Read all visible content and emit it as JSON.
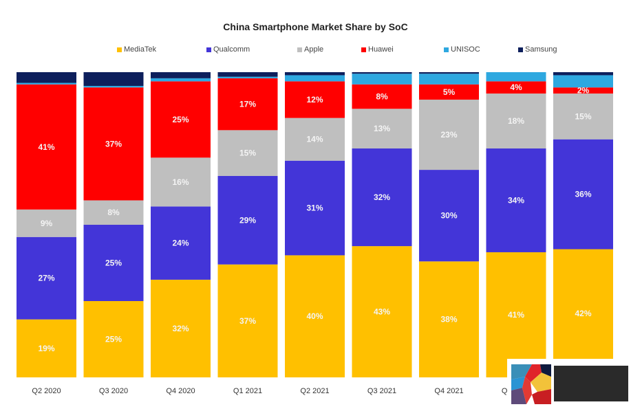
{
  "chart_data": {
    "type": "bar",
    "stacked": true,
    "normalized": true,
    "title": "China Smartphone Market Share by SoC",
    "xlabel": "",
    "ylabel": "",
    "ylim": [
      0,
      100
    ],
    "legend_position": "top",
    "grid": false,
    "categories": [
      "Q2 2020",
      "Q3 2020",
      "Q4 2020",
      "Q1 2021",
      "Q2 2021",
      "Q3 2021",
      "Q4 2021",
      "Q1 2022",
      "Q2 2022"
    ],
    "series": [
      {
        "name": "MediaTek",
        "color": "#FFC000",
        "values": [
          19,
          25,
          32,
          37,
          40,
          43,
          38,
          41,
          42
        ],
        "labeled": true
      },
      {
        "name": "Qualcomm",
        "color": "#4335D8",
        "values": [
          27,
          25,
          24,
          29,
          31,
          32,
          30,
          34,
          36
        ],
        "labeled": true
      },
      {
        "name": "Apple",
        "color": "#BFBFBF",
        "values": [
          9,
          8,
          16,
          15,
          14,
          13,
          23,
          18,
          15
        ],
        "labeled": true
      },
      {
        "name": "Huawei",
        "color": "#FF0000",
        "values": [
          41,
          37,
          25,
          17,
          12,
          8,
          5,
          4,
          2
        ],
        "labeled": true
      },
      {
        "name": "UNISOC",
        "color": "#2EA8E0",
        "values": [
          0.5,
          0.5,
          1,
          0.5,
          2,
          3.5,
          3.5,
          3,
          4
        ],
        "labeled": false
      },
      {
        "name": "Samsung",
        "color": "#0D1F5C",
        "values": [
          3.5,
          4.5,
          2,
          1.5,
          1,
          0.5,
          0.5,
          0,
          1
        ],
        "labeled": false
      }
    ],
    "value_suffix": "%"
  },
  "watermark": {
    "present": true,
    "text_obscured": true
  }
}
